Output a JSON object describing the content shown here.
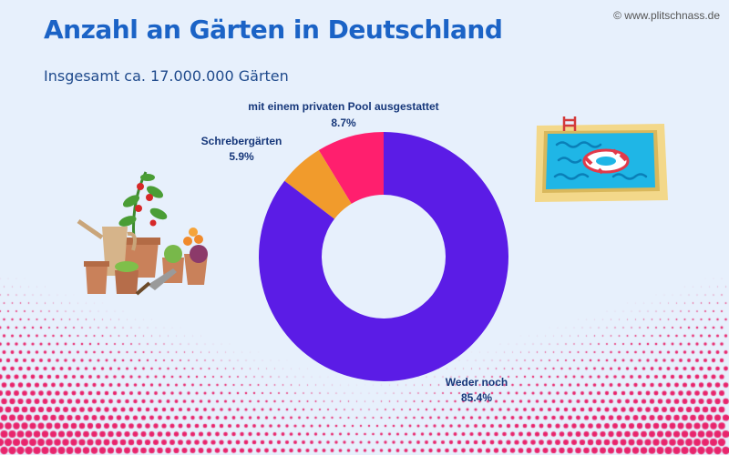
{
  "header": {
    "title": "Anzahl an Gärten in Deutschland",
    "subtitle": "Insgesamt ca. 17.000.000 Gärten",
    "copyright": "© www.plitschnass.de"
  },
  "colors": {
    "background": "#e7f0fc",
    "title": "#1b63c6",
    "halftone": "#e8246c"
  },
  "icons": {
    "left": "garden-pots-icon",
    "right": "swimming-pool-icon"
  },
  "chart_data": {
    "type": "pie",
    "donut": true,
    "title": "Anzahl an Gärten in Deutschland",
    "subtitle": "Insgesamt ca. 17.000.000 Gärten",
    "slices": [
      {
        "label": "mit einem privaten Pool ausgestattet",
        "value": 8.7,
        "value_label": "8.7%",
        "color": "#ff1f6e"
      },
      {
        "label": "Schrebergärten",
        "value": 5.9,
        "value_label": "5.9%",
        "color": "#f19b2c"
      },
      {
        "label": "Weder noch",
        "value": 85.4,
        "value_label": "85.4%",
        "color": "#5b1ce6"
      }
    ],
    "start": "top",
    "direction": "counterclockwise",
    "legend": "none",
    "labels": "outside"
  }
}
